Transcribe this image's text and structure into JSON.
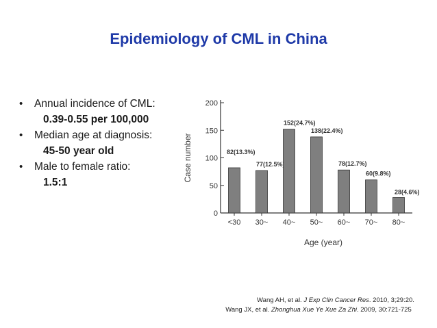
{
  "slide": {
    "title": "Epidemiology of CML in China",
    "accent_color": "#1f3aa8"
  },
  "bullets": [
    {
      "label": "Annual incidence of CML:",
      "value": "0.39-0.55 per 100,000"
    },
    {
      "label": "Median age at diagnosis:",
      "value": "45-50 year old"
    },
    {
      "label": "Male to female ratio:",
      "value": "1.5:1"
    }
  ],
  "bullet_symbol": "•",
  "references": {
    "ref1": {
      "pre": "Wang AH, et al. ",
      "journal": "J Exp Clin Cancer Res",
      "post": ". 2010, 3;29:20."
    },
    "ref2": {
      "pre": "Wang JX, et al. ",
      "journal": "Zhonghua Xue Ye Xue Za Zhi",
      "post": ". 2009, 30:721-725"
    }
  },
  "chart_data": {
    "type": "bar",
    "categories": [
      "<30",
      "30~",
      "40~",
      "50~",
      "60~",
      "70~",
      "80~"
    ],
    "values": [
      82,
      77,
      152,
      138,
      78,
      60,
      28
    ],
    "data_labels": [
      "82(13.3%)",
      "77(12.5%)",
      "152(24.7%)",
      "138(22.4%)",
      "78(12.7%)",
      "60(9.8%)",
      "28(4.6%)"
    ],
    "xlabel": "Age (year)",
    "ylabel": "Case number",
    "ylim": [
      0,
      200
    ],
    "yticks": [
      0,
      50,
      100,
      150,
      200
    ],
    "grid": false,
    "bar_color": "#7f7f7f"
  }
}
